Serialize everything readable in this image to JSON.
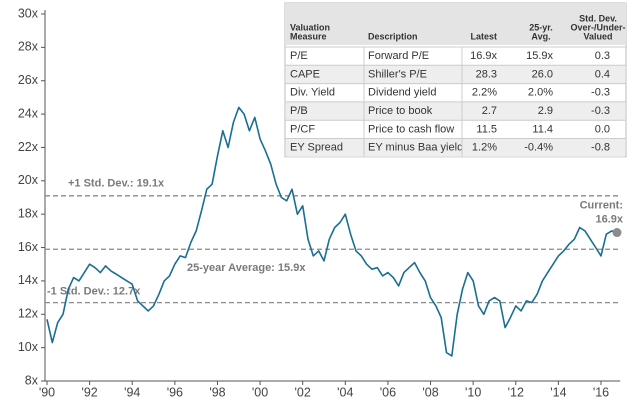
{
  "chart_data": {
    "type": "line",
    "x": [
      1990,
      1990.25,
      1990.5,
      1990.75,
      1991,
      1991.25,
      1991.5,
      1991.75,
      1992,
      1992.25,
      1992.5,
      1992.75,
      1993,
      1993.25,
      1993.5,
      1993.75,
      1994,
      1994.25,
      1994.5,
      1994.75,
      1995,
      1995.25,
      1995.5,
      1995.75,
      1996,
      1996.25,
      1996.5,
      1996.75,
      1997,
      1997.25,
      1997.5,
      1997.75,
      1998,
      1998.25,
      1998.5,
      1998.75,
      1999,
      1999.25,
      1999.5,
      1999.75,
      2000,
      2000.25,
      2000.5,
      2000.75,
      2001,
      2001.25,
      2001.5,
      2001.75,
      2002,
      2002.25,
      2002.5,
      2002.75,
      2003,
      2003.25,
      2003.5,
      2003.75,
      2004,
      2004.25,
      2004.5,
      2004.75,
      2005,
      2005.25,
      2005.5,
      2005.75,
      2006,
      2006.25,
      2006.5,
      2006.75,
      2007,
      2007.25,
      2007.5,
      2007.75,
      2008,
      2008.25,
      2008.5,
      2008.75,
      2009,
      2009.25,
      2009.5,
      2009.75,
      2010,
      2010.25,
      2010.5,
      2010.75,
      2011,
      2011.25,
      2011.5,
      2011.75,
      2012,
      2012.25,
      2012.5,
      2012.75,
      2013,
      2013.25,
      2013.5,
      2013.75,
      2014,
      2014.25,
      2014.5,
      2014.75,
      2015,
      2015.25,
      2015.5,
      2015.75,
      2016,
      2016.25,
      2016.5,
      2016.75
    ],
    "series": [
      {
        "color": "#1a6e94",
        "values": [
          11.7,
          10.3,
          11.5,
          12.0,
          13.5,
          14.2,
          14.0,
          14.5,
          15.0,
          14.8,
          14.5,
          14.9,
          14.6,
          14.4,
          14.2,
          14.0,
          13.8,
          12.8,
          12.5,
          12.2,
          12.5,
          13.2,
          14.0,
          14.3,
          15.0,
          15.5,
          15.4,
          16.3,
          17.0,
          18.2,
          19.5,
          19.8,
          21.5,
          23.0,
          22.0,
          23.5,
          24.4,
          24.0,
          23.0,
          23.8,
          22.5,
          21.8,
          21.0,
          19.8,
          19.0,
          18.8,
          19.5,
          18.0,
          18.5,
          16.5,
          15.5,
          15.8,
          15.2,
          16.5,
          17.2,
          17.5,
          18.0,
          16.8,
          15.8,
          15.5,
          15.0,
          14.7,
          14.8,
          14.3,
          14.5,
          14.2,
          13.7,
          14.5,
          14.8,
          15.1,
          14.5,
          14.0,
          13.0,
          12.5,
          11.8,
          9.7,
          9.5,
          12.0,
          13.5,
          14.5,
          14.0,
          12.5,
          12.0,
          12.8,
          13.0,
          12.8,
          11.2,
          11.8,
          12.5,
          12.2,
          12.8,
          12.7,
          13.2,
          14.0,
          14.5,
          15.0,
          15.5,
          15.8,
          16.2,
          16.5,
          17.2,
          17.0,
          16.5,
          16.0,
          15.5,
          16.8,
          17.0,
          16.9
        ]
      }
    ],
    "xlim": [
      1990,
      2016.9
    ],
    "ylim": [
      8,
      30
    ],
    "xticks": [
      {
        "value": 1990,
        "label": "'90"
      },
      {
        "value": 1992,
        "label": "'92"
      },
      {
        "value": 1994,
        "label": "'94"
      },
      {
        "value": 1996,
        "label": "'96"
      },
      {
        "value": 1998,
        "label": "'98"
      },
      {
        "value": 2000,
        "label": "'00"
      },
      {
        "value": 2002,
        "label": "'02"
      },
      {
        "value": 2004,
        "label": "'04"
      },
      {
        "value": 2006,
        "label": "'06"
      },
      {
        "value": 2008,
        "label": "'08"
      },
      {
        "value": 2010,
        "label": "'10"
      },
      {
        "value": 2012,
        "label": "'12"
      },
      {
        "value": 2014,
        "label": "'14"
      },
      {
        "value": 2016,
        "label": "'16"
      }
    ],
    "yticks": [
      {
        "value": 8,
        "label": "8x"
      },
      {
        "value": 10,
        "label": "10x"
      },
      {
        "value": 12,
        "label": "12x"
      },
      {
        "value": 14,
        "label": "14x"
      },
      {
        "value": 16,
        "label": "16x"
      },
      {
        "value": 18,
        "label": "18x"
      },
      {
        "value": 20,
        "label": "20x"
      },
      {
        "value": 22,
        "label": "22x"
      },
      {
        "value": 24,
        "label": "24x"
      },
      {
        "value": 26,
        "label": "26x"
      },
      {
        "value": 28,
        "label": "28x"
      },
      {
        "value": 30,
        "label": "30x"
      }
    ],
    "reference_lines": [
      {
        "value": 19.1,
        "label": "+1 Std. Dev.: 19.1x"
      },
      {
        "value": 15.9,
        "label": "25-year Average: 15.9x"
      },
      {
        "value": 12.7,
        "label": "-1 Std. Dev.: 12.7x"
      }
    ],
    "current_annotation": [
      "Current:",
      "16.9x"
    ]
  },
  "table": {
    "header": [
      [
        "Valuation",
        "Measure"
      ],
      [
        "Description"
      ],
      [
        "Latest"
      ],
      [
        "25-yr.",
        "Avg."
      ],
      [
        "Std. Dev.",
        "Over-/Under-",
        "Valued"
      ]
    ],
    "rows": [
      [
        "P/E",
        "Forward P/E",
        "16.9x",
        "15.9x",
        "0.3"
      ],
      [
        "CAPE",
        "Shiller's P/E",
        "28.3",
        "26.0",
        "0.4"
      ],
      [
        "Div. Yield",
        "Dividend yield",
        "2.2%",
        "2.0%",
        "-0.3"
      ],
      [
        "P/B",
        "Price to book",
        "2.7",
        "2.9",
        "-0.3"
      ],
      [
        "P/CF",
        "Price to cash flow",
        "11.5",
        "11.4",
        "0.0"
      ],
      [
        "EY Spread",
        "EY minus Baa yield",
        "1.2%",
        "-0.4%",
        "-0.8"
      ]
    ]
  }
}
